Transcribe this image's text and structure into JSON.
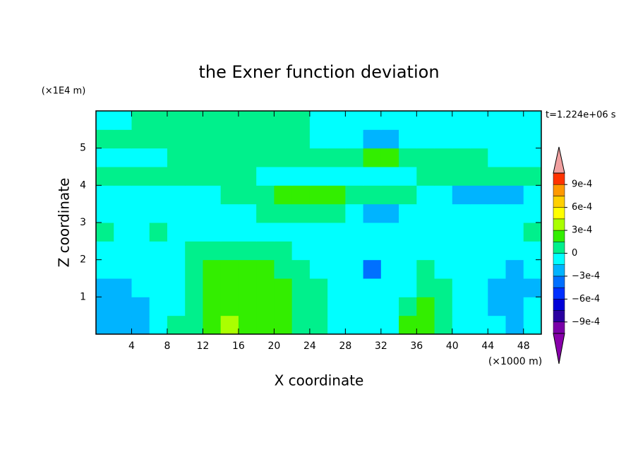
{
  "chart_data": {
    "type": "contour",
    "title": "the Exner function deviation",
    "xlabel": "X coordinate",
    "ylabel": "Z coordinate",
    "x_unit": "(×1000 m)",
    "y_unit": "(×1E4 m)",
    "annotation": "t=1.224e+06 s",
    "xlim": [
      0,
      50
    ],
    "ylim": [
      0,
      6
    ],
    "xticks": [
      4,
      8,
      12,
      16,
      20,
      24,
      28,
      32,
      36,
      40,
      44,
      48
    ],
    "yticks": [
      1,
      2,
      3,
      4,
      5
    ],
    "levels": [
      -0.00105,
      -0.0009,
      -0.00075,
      -0.0006,
      -0.00045,
      -0.0003,
      -0.00015,
      0,
      0.00015,
      0.0003,
      0.00045,
      0.0006,
      0.00075,
      0.0009,
      0.00105
    ],
    "colors": [
      "#7a00a8",
      "#2a00a0",
      "#0000d8",
      "#0030ff",
      "#0070ff",
      "#00b4ff",
      "#00ffff",
      "#00f08c",
      "#33ee00",
      "#aaff00",
      "#ffff00",
      "#ffd000",
      "#ff9900",
      "#ff3300"
    ],
    "under_color": "#8800aa",
    "over_color": "#f0a0a0",
    "colorbar_ticks": [
      {
        "value": 0.0009,
        "label": "9e-4"
      },
      {
        "value": 0.0006,
        "label": "6e-4"
      },
      {
        "value": 0.0003,
        "label": "3e-4"
      },
      0,
      {
        "value": -0.0003,
        "label": "−3e-4"
      },
      {
        "value": -0.0006,
        "label": "−6e-4"
      },
      {
        "value": -0.0009,
        "label": "−9e-4"
      }
    ],
    "z": [
      [
        -0.0002,
        -0.0002,
        -0.0002,
        -5e-05,
        5e-05,
        5e-05,
        0.0002,
        0.00035,
        0.0002,
        0.0002,
        0.0002,
        5e-05,
        5e-05,
        -5e-05,
        -5e-05,
        -5e-05,
        -5e-05,
        0.0002,
        0.0002,
        5e-05,
        -5e-05,
        -5e-05,
        -5e-05,
        -0.0002,
        -5e-05
      ],
      [
        -0.0002,
        -0.0002,
        -0.0002,
        -5e-05,
        -5e-05,
        5e-05,
        0.0002,
        0.0002,
        0.0002,
        0.0002,
        0.0002,
        5e-05,
        5e-05,
        -5e-05,
        -5e-05,
        -5e-05,
        -5e-05,
        5e-05,
        0.0002,
        5e-05,
        -5e-05,
        -5e-05,
        -0.0002,
        -0.0002,
        -5e-05
      ],
      [
        -0.0002,
        -0.0002,
        -5e-05,
        -5e-05,
        -5e-05,
        5e-05,
        0.0002,
        0.0002,
        0.0002,
        0.0002,
        0.0002,
        5e-05,
        5e-05,
        -5e-05,
        -5e-05,
        -5e-05,
        -5e-05,
        -5e-05,
        5e-05,
        5e-05,
        -5e-05,
        -5e-05,
        -0.0002,
        -0.0002,
        -0.0002
      ],
      [
        -5e-05,
        -5e-05,
        -5e-05,
        -5e-05,
        -5e-05,
        5e-05,
        0.0002,
        0.0002,
        0.0002,
        0.0002,
        5e-05,
        5e-05,
        -5e-05,
        -5e-05,
        -5e-05,
        -0.00035,
        -5e-05,
        -5e-05,
        5e-05,
        -5e-05,
        -5e-05,
        -5e-05,
        -5e-05,
        -0.0002,
        -5e-05
      ],
      [
        -5e-05,
        -5e-05,
        -5e-05,
        -5e-05,
        -5e-05,
        5e-05,
        5e-05,
        5e-05,
        5e-05,
        5e-05,
        5e-05,
        -5e-05,
        -5e-05,
        -5e-05,
        -5e-05,
        -5e-05,
        -5e-05,
        -5e-05,
        -5e-05,
        -5e-05,
        -5e-05,
        -5e-05,
        -5e-05,
        -5e-05,
        -5e-05
      ],
      [
        5e-05,
        -5e-05,
        -5e-05,
        5e-05,
        -5e-05,
        -5e-05,
        -5e-05,
        -5e-05,
        -5e-05,
        -5e-05,
        -5e-05,
        -5e-05,
        -5e-05,
        -5e-05,
        -5e-05,
        -5e-05,
        -5e-05,
        -5e-05,
        -5e-05,
        -5e-05,
        -5e-05,
        -5e-05,
        -5e-05,
        -5e-05,
        5e-05
      ],
      [
        -5e-05,
        -5e-05,
        -5e-05,
        -5e-05,
        -5e-05,
        -5e-05,
        -5e-05,
        -5e-05,
        -5e-05,
        5e-05,
        5e-05,
        5e-05,
        5e-05,
        5e-05,
        -5e-05,
        -0.0002,
        -0.0002,
        -5e-05,
        -5e-05,
        -5e-05,
        -5e-05,
        -5e-05,
        -5e-05,
        -5e-05,
        -5e-05
      ],
      [
        -5e-05,
        -5e-05,
        -5e-05,
        -5e-05,
        -5e-05,
        -5e-05,
        -5e-05,
        5e-05,
        5e-05,
        5e-05,
        0.0002,
        0.0002,
        0.0002,
        0.0002,
        5e-05,
        5e-05,
        5e-05,
        5e-05,
        -5e-05,
        -5e-05,
        -0.0002,
        -0.0002,
        -0.0002,
        -0.0002,
        -5e-05
      ],
      [
        5e-05,
        5e-05,
        5e-05,
        5e-05,
        5e-05,
        5e-05,
        5e-05,
        5e-05,
        5e-05,
        -5e-05,
        -5e-05,
        -5e-05,
        -5e-05,
        -5e-05,
        -5e-05,
        -5e-05,
        -5e-05,
        -5e-05,
        5e-05,
        5e-05,
        5e-05,
        5e-05,
        5e-05,
        5e-05,
        5e-05
      ],
      [
        -5e-05,
        -5e-05,
        -5e-05,
        -5e-05,
        5e-05,
        5e-05,
        5e-05,
        5e-05,
        5e-05,
        5e-05,
        5e-05,
        5e-05,
        5e-05,
        5e-05,
        5e-05,
        0.0002,
        0.0002,
        5e-05,
        5e-05,
        5e-05,
        5e-05,
        5e-05,
        -5e-05,
        -5e-05,
        -5e-05
      ],
      [
        5e-05,
        5e-05,
        5e-05,
        5e-05,
        5e-05,
        5e-05,
        5e-05,
        5e-05,
        5e-05,
        5e-05,
        5e-05,
        5e-05,
        -5e-05,
        -5e-05,
        -5e-05,
        -0.0002,
        -0.0002,
        -5e-05,
        -5e-05,
        -5e-05,
        -5e-05,
        -5e-05,
        -5e-05,
        -5e-05,
        -5e-05
      ],
      [
        -5e-05,
        -5e-05,
        5e-05,
        5e-05,
        5e-05,
        5e-05,
        5e-05,
        5e-05,
        5e-05,
        5e-05,
        5e-05,
        5e-05,
        -5e-05,
        -5e-05,
        -5e-05,
        -5e-05,
        -5e-05,
        -5e-05,
        -5e-05,
        -5e-05,
        -5e-05,
        -5e-05,
        -5e-05,
        -5e-05,
        -5e-05
      ]
    ]
  }
}
